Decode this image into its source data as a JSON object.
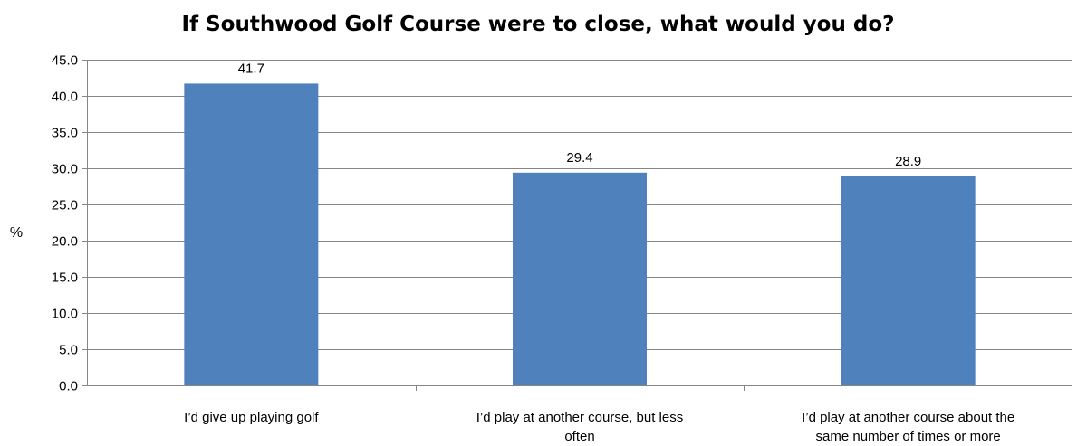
{
  "chart_data": {
    "type": "bar",
    "title": "If Southwood Golf Course were to close, what would you do?",
    "xlabel": "",
    "ylabel": "%",
    "ylim": [
      0,
      45
    ],
    "ytick_step": 5,
    "ytick_labels": [
      "0.0",
      "5.0",
      "10.0",
      "15.0",
      "20.0",
      "25.0",
      "30.0",
      "35.0",
      "40.0",
      "45.0"
    ],
    "grid": true,
    "legend": "none",
    "categories": [
      [
        "I’d give up playing golf"
      ],
      [
        "I’d play at another course, but less",
        "often"
      ],
      [
        "I’d play at another course about the",
        "same number of times or more"
      ]
    ],
    "values": [
      41.7,
      29.4,
      28.9
    ],
    "data_labels": [
      "41.7",
      "29.4",
      "28.9"
    ],
    "colors": {
      "bar": "#4f81bd",
      "grid": "#868686",
      "axis": "#868686"
    }
  }
}
